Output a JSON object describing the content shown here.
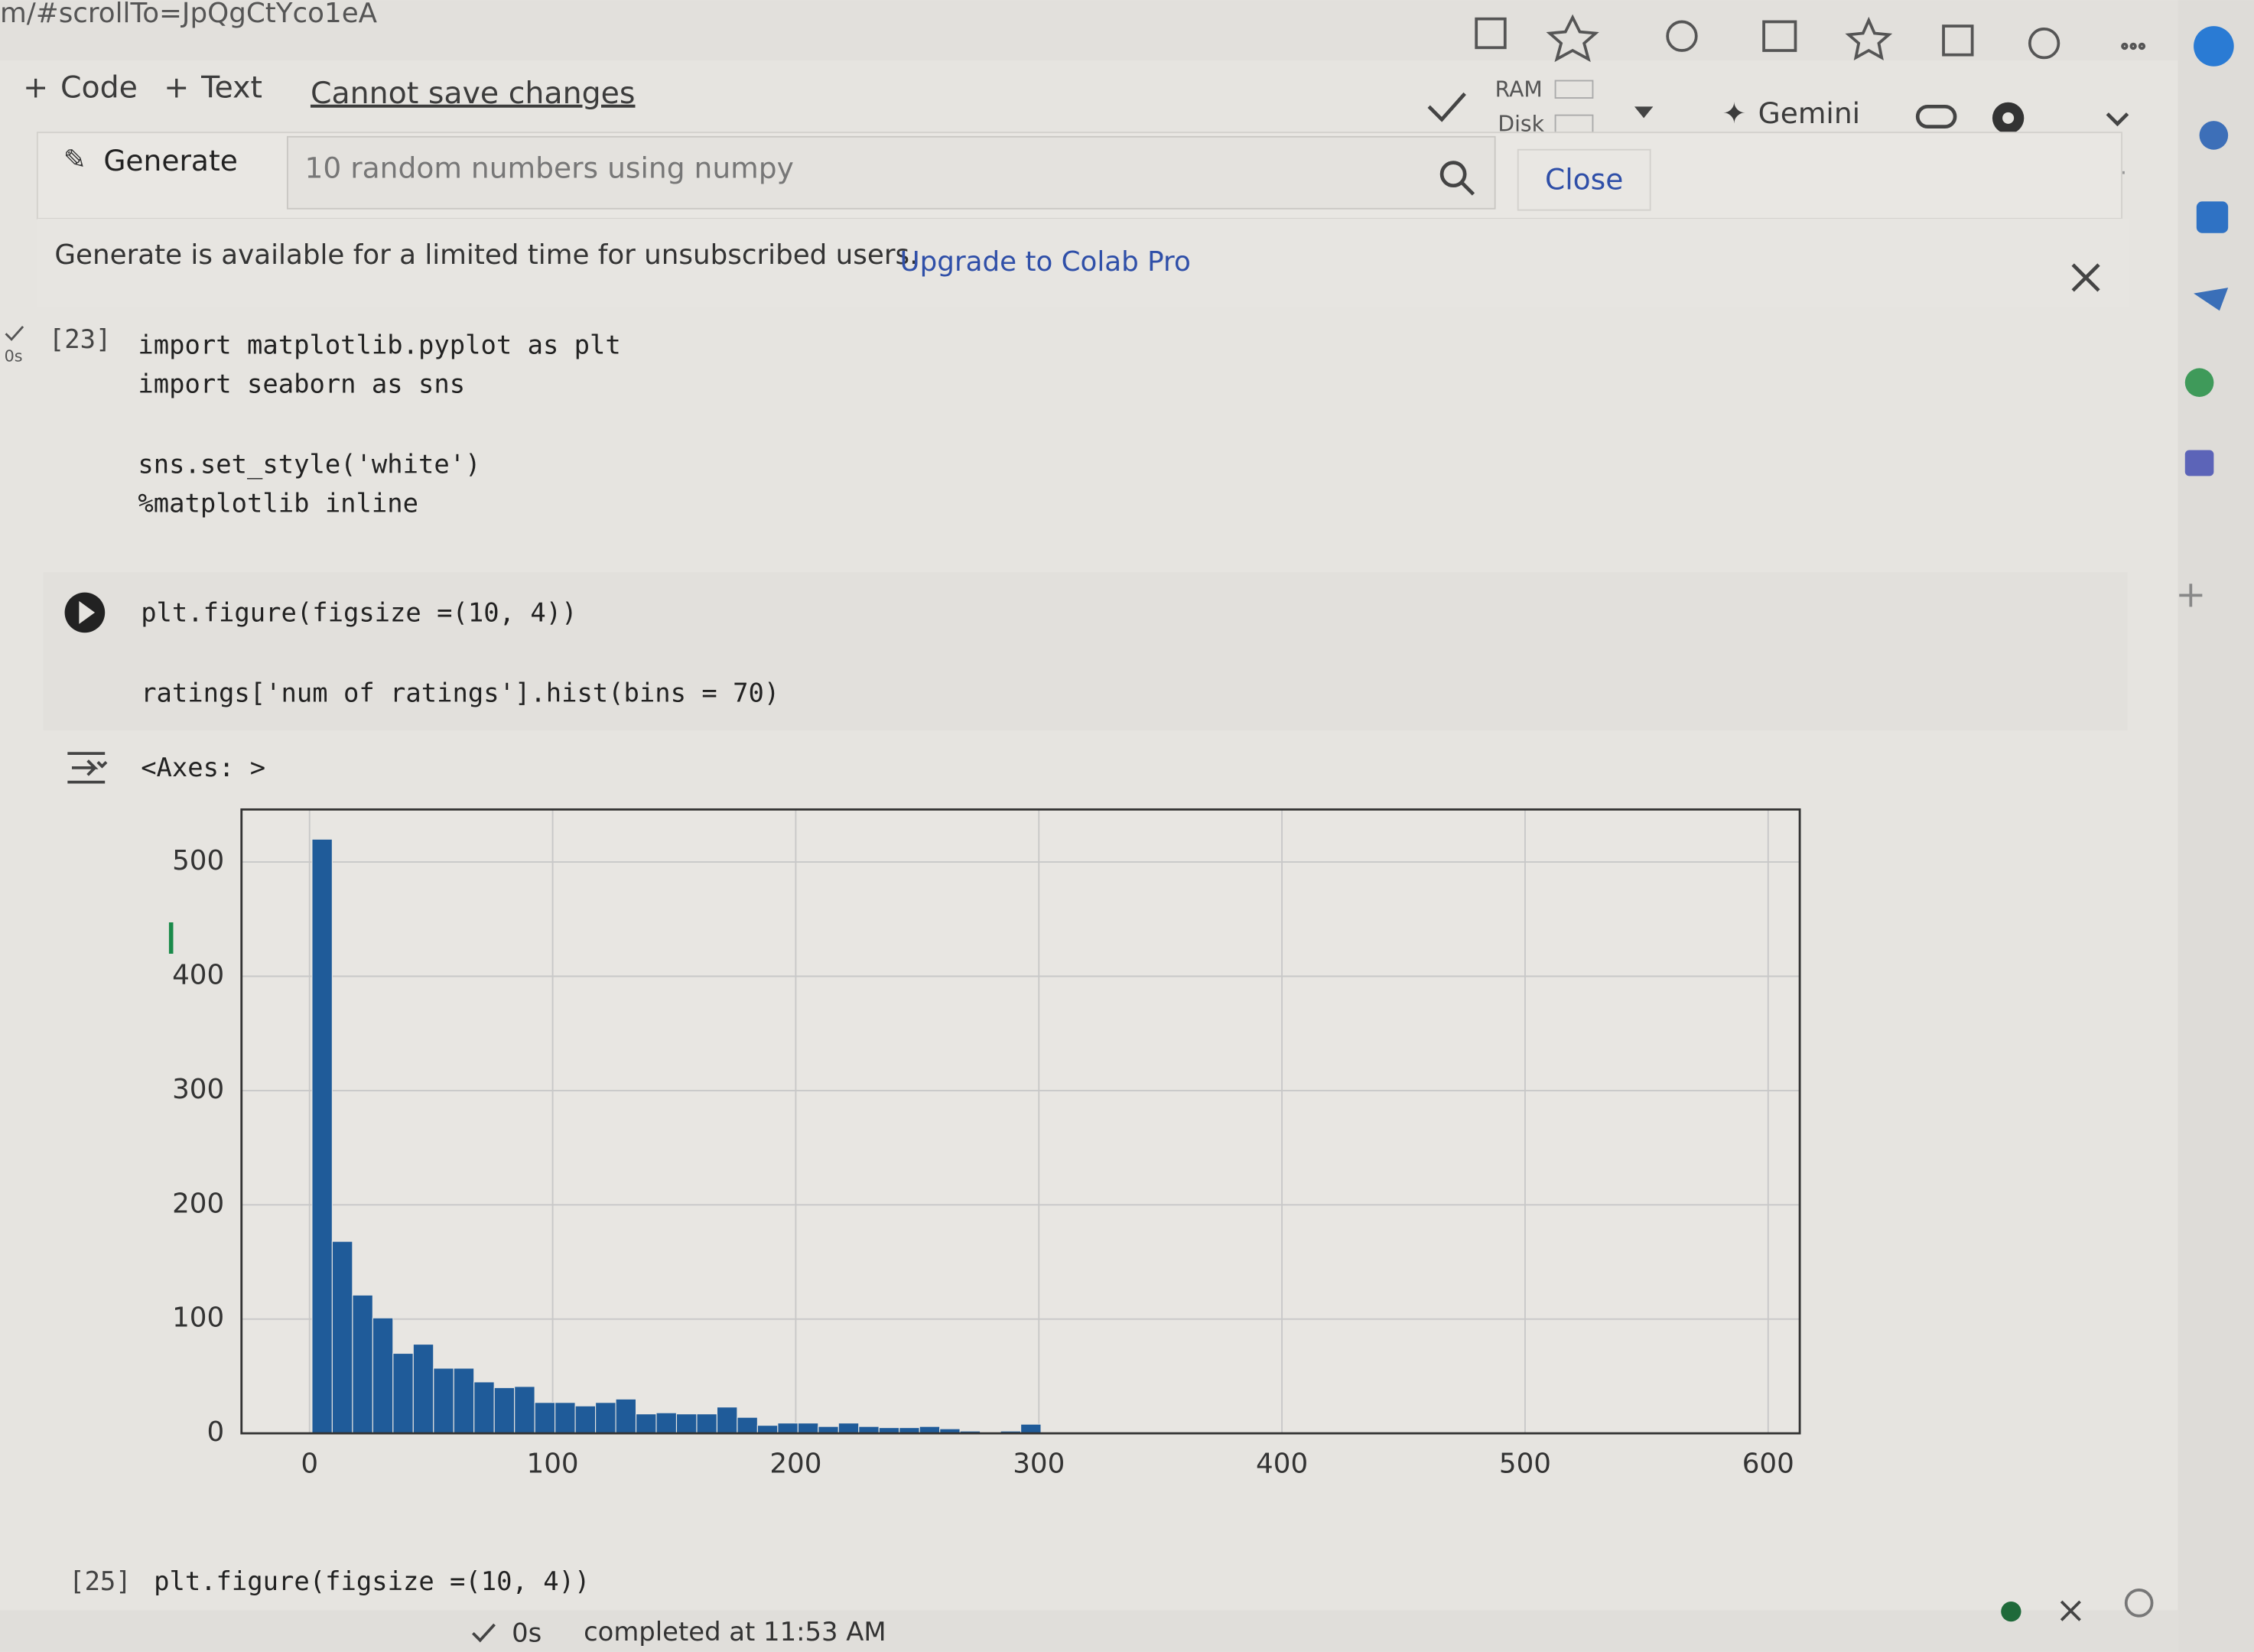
{
  "browser": {
    "url": "m/#scrollTo=JpQgCtYco1eA"
  },
  "toolbar": {
    "code": "Code",
    "text": "Text",
    "save": "Cannot save changes",
    "ram": "RAM",
    "disk": "Disk",
    "gemini": "Gemini"
  },
  "generate": {
    "button": "Generate",
    "placeholder": "10 random numbers using numpy",
    "close": "Close"
  },
  "banner": {
    "message": "Generate is available for a limited time for unsubscribed users.",
    "link": "Upgrade to Colab Pro"
  },
  "cells": [
    {
      "exec": "[23]",
      "time": "0s",
      "lines": [
        "import matplotlib.pyplot as plt",
        "import seaborn as sns",
        "sns.set_style('white')",
        "%matplotlib inline"
      ]
    },
    {
      "lines": [
        "plt.figure(figsize =(10, 4))",
        "ratings['num of ratings'].hist(bins = 70)"
      ],
      "output": "<Axes: >"
    },
    {
      "exec": "[25]",
      "lines": [
        "plt.figure(figsize =(10, 4))"
      ]
    }
  ],
  "status": {
    "time": "0s",
    "message": "completed at 11:53 AM"
  },
  "chart_data": {
    "type": "histogram",
    "color": "#1f5b99",
    "grid": true,
    "bins": [
      1,
      9.33,
      17.66,
      25.99,
      34.32,
      42.65,
      50.98,
      59.31,
      67.64,
      75.97,
      84.3,
      92.63,
      100.96,
      109.29,
      117.62,
      125.95,
      134.28,
      142.61,
      150.94,
      159.27,
      167.6,
      175.93,
      184.26,
      192.59,
      200.92,
      209.25,
      217.58,
      225.91,
      234.24,
      242.57,
      250.9,
      259.23,
      267.56,
      275.89,
      284.22,
      292.55,
      300.88,
      309.21,
      317.54,
      325.87,
      334.2,
      342.53,
      350.86,
      359.19,
      367.52,
      375.85,
      384.18,
      392.51,
      400.84,
      409.17,
      417.5,
      425.83,
      434.16,
      442.49,
      450.82,
      459.15,
      467.48,
      475.81,
      484.14,
      492.47,
      500.8,
      509.13,
      517.46,
      525.79,
      534.12,
      542.45,
      550.78,
      559.11,
      567.44,
      575.77,
      584.1
    ],
    "values": [
      520,
      168,
      121,
      101,
      70,
      78,
      57,
      57,
      45,
      40,
      41,
      27,
      27,
      24,
      27,
      30,
      17,
      18,
      17,
      17,
      23,
      14,
      7,
      9,
      9,
      6,
      9,
      6,
      5,
      5,
      6,
      4,
      2,
      0,
      2,
      8,
      0,
      0,
      1,
      0,
      0,
      0,
      1,
      0,
      0,
      0,
      0,
      0,
      0,
      0,
      0,
      0,
      0,
      0,
      0,
      0,
      0,
      0,
      0,
      0,
      0,
      0,
      0,
      0,
      0,
      0,
      0,
      0,
      0,
      1
    ],
    "xlim": [
      -28,
      613
    ],
    "ylim": [
      0,
      546
    ],
    "xticks": [
      0,
      100,
      200,
      300,
      400,
      500,
      600
    ],
    "yticks": [
      0,
      100,
      200,
      300,
      400,
      500
    ]
  }
}
